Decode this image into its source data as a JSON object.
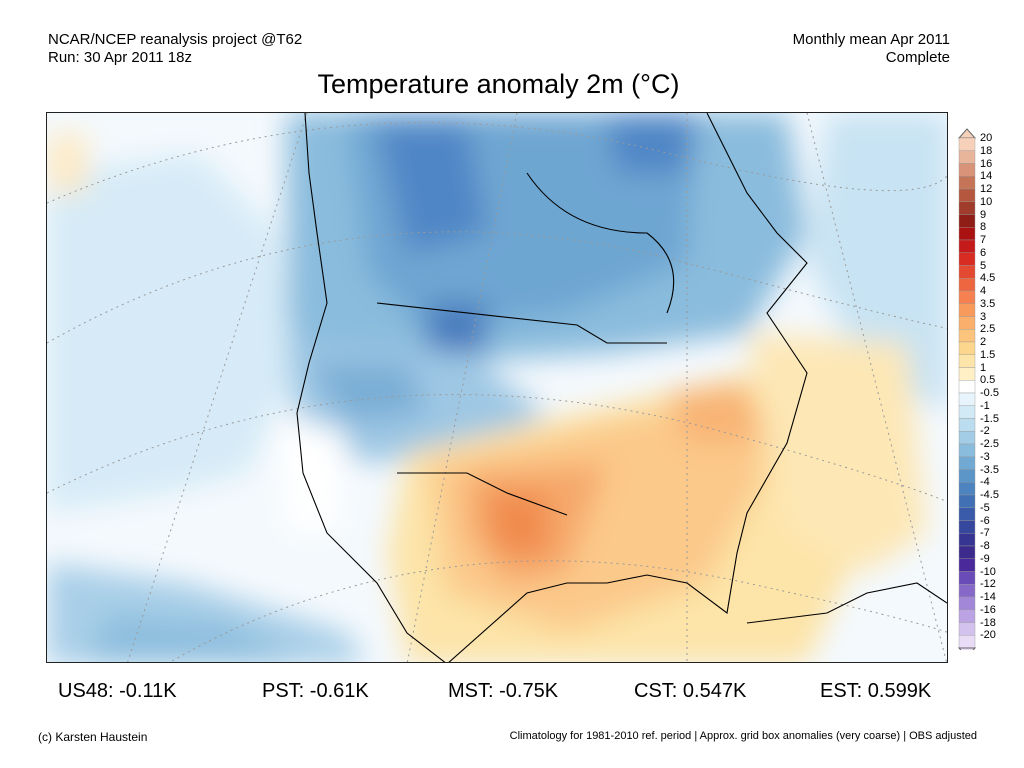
{
  "header": {
    "source": "NCAR/NCEP reanalysis project @T62",
    "run": "Run: 30 Apr 2011 18z",
    "period": "Monthly mean Apr 2011",
    "status": "Complete"
  },
  "title": "Temperature anomaly 2m (°C)",
  "colorbar": {
    "labels": [
      "20",
      "18",
      "16",
      "14",
      "12",
      "10",
      "9",
      "8",
      "7",
      "6",
      "5",
      "4.5",
      "4",
      "3.5",
      "3",
      "2.5",
      "2",
      "1.5",
      "1",
      "0.5",
      "-0.5",
      "-1",
      "-1.5",
      "-2",
      "-2.5",
      "-3",
      "-3.5",
      "-4",
      "-4.5",
      "-5",
      "-6",
      "-7",
      "-8",
      "-9",
      "-10",
      "-12",
      "-14",
      "-16",
      "-18",
      "-20"
    ],
    "colors": [
      "#f6d0b8",
      "#e8b49a",
      "#d89378",
      "#c67458",
      "#b5573f",
      "#a03c2b",
      "#8f1f16",
      "#aa1212",
      "#c51a1a",
      "#d82b22",
      "#e44931",
      "#ee6640",
      "#f58150",
      "#f89a5c",
      "#fab06c",
      "#fcc47c",
      "#fdd68e",
      "#fde4a8",
      "#fff0c6",
      "#ffffff",
      "#e8f4fb",
      "#d2e9f6",
      "#bcdcef",
      "#a3cde6",
      "#8abcdd",
      "#72a9d3",
      "#5c96c8",
      "#4d83be",
      "#4270b4",
      "#3a5ba9",
      "#36479e",
      "#363692",
      "#3c2a8c",
      "#4a2a9a",
      "#6a4cb8",
      "#8668c8",
      "#a286d8",
      "#bca4e4",
      "#d4c2ee",
      "#e8dcf6"
    ]
  },
  "regional_means": [
    {
      "text": "US48: -0.11K"
    },
    {
      "text": "PST: -0.61K"
    },
    {
      "text": "MST: -0.75K"
    },
    {
      "text": "CST: 0.547K"
    },
    {
      "text": "EST: 0.599K"
    }
  ],
  "footer": {
    "credit": "(c) Karsten Haustein",
    "note": "Climatology for 1981-2010 ref. period | Approx. grid box anomalies (very coarse) | OBS adjusted"
  },
  "map": {
    "palette": {
      "land_line": "#000000",
      "grid_line": "#999999",
      "warm": "#f6b26b",
      "hot": "#f08a4b",
      "cold": "#4f86c6",
      "cool": "#a9cfe8"
    }
  }
}
